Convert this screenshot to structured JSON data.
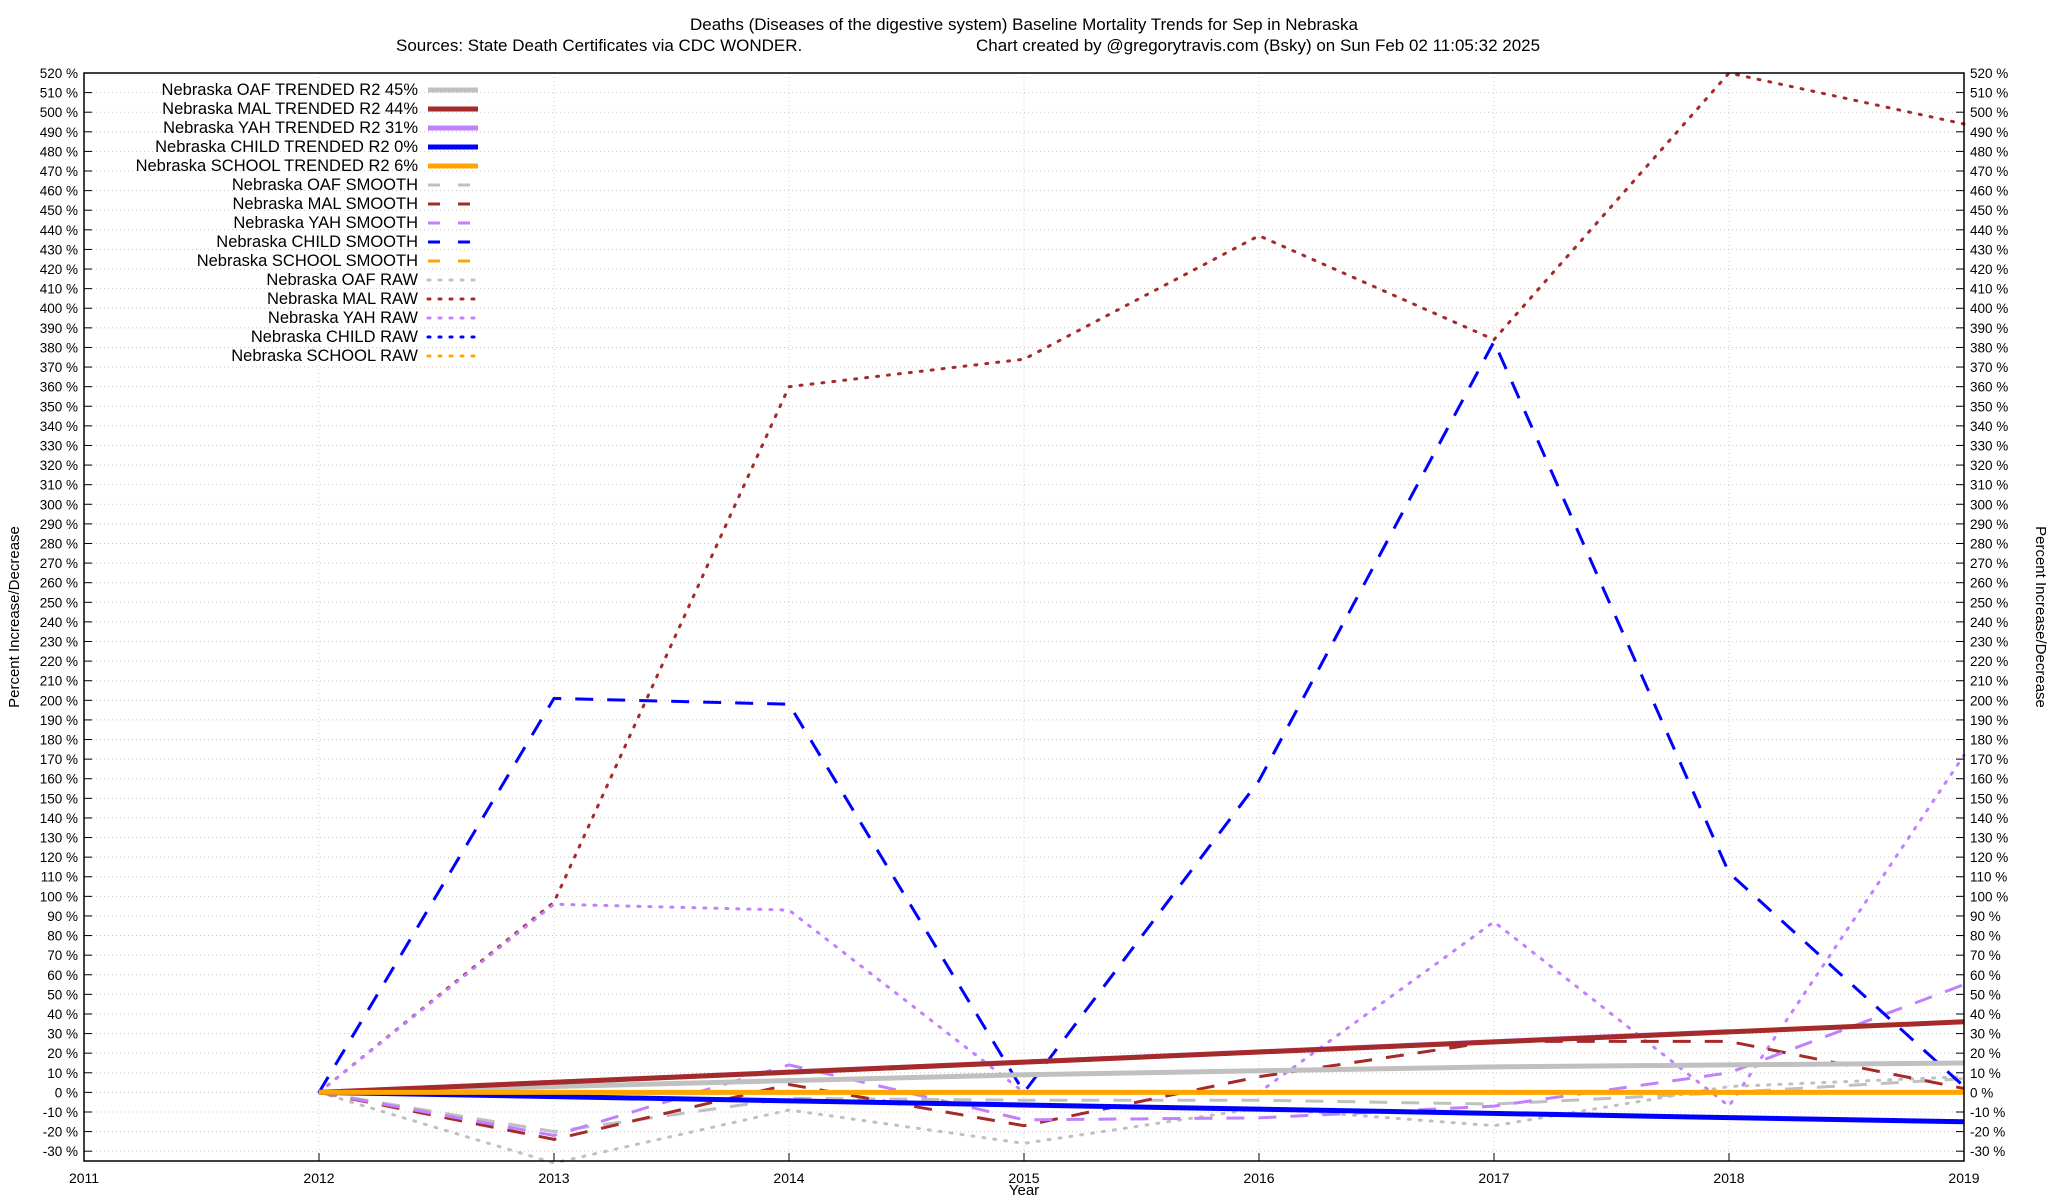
{
  "chart_data": {
    "type": "line",
    "title": "Deaths (Diseases of the digestive system)  Baseline Mortality Trends for Sep in Nebraska",
    "subtitle_left": "Sources: State Death Certificates via CDC WONDER.",
    "subtitle_right": "Chart created by @gregorytravis.com (Bsky) on Sun Feb 02 11:05:32 2025",
    "xlabel": "Year",
    "ylabel": "Percent Increase/Decrease",
    "ylabel_right": "Percent Increase/Decrease",
    "xlim": [
      2011,
      2019
    ],
    "ylim": [
      -35,
      520
    ],
    "x_ticks": [
      "2011",
      "2012",
      "2013",
      "2014",
      "2015",
      "2016",
      "2017",
      "2018",
      "2019"
    ],
    "y_tick_step": 10,
    "y_tick_min": -30,
    "y_tick_max": 520,
    "y_tick_suffix": " %",
    "grid": true,
    "legend_position": "top-left",
    "series": [
      {
        "name": "Nebraska OAF TRENDED R2  45%",
        "color": "#c0c0c0",
        "style": "solid",
        "width": 5,
        "x": [
          2012,
          2013,
          2014,
          2015,
          2016,
          2017,
          2018,
          2019
        ],
        "y": [
          0,
          3,
          6,
          9,
          11,
          13,
          14,
          15
        ]
      },
      {
        "name": "Nebraska MAL TRENDED R2  44%",
        "color": "#a52a2a",
        "style": "solid",
        "width": 5,
        "x": [
          2012,
          2019
        ],
        "y": [
          0,
          36
        ]
      },
      {
        "name": "Nebraska YAH TRENDED R2  31%",
        "color": "#c080ff",
        "style": "solid",
        "width": 5,
        "x": [
          2012,
          2018
        ],
        "y": [
          0,
          31
        ]
      },
      {
        "name": "Nebraska CHILD TRENDED R2   0%",
        "color": "#0000ff",
        "style": "solid",
        "width": 5,
        "x": [
          2012,
          2019
        ],
        "y": [
          0,
          -15
        ]
      },
      {
        "name": "Nebraska SCHOOL TRENDED R2   6%",
        "color": "#ffa500",
        "style": "solid",
        "width": 5,
        "x": [
          2012,
          2019
        ],
        "y": [
          0,
          0
        ]
      },
      {
        "name": "Nebraska OAF SMOOTH",
        "color": "#c0c0c0",
        "style": "dash",
        "width": 3,
        "x": [
          2012,
          2013,
          2014,
          2015,
          2016,
          2017,
          2018,
          2019
        ],
        "y": [
          0,
          -20,
          -3,
          -4,
          -4,
          -6,
          0,
          7
        ]
      },
      {
        "name": "Nebraska MAL SMOOTH",
        "color": "#a52a2a",
        "style": "dash",
        "width": 3,
        "x": [
          2012,
          2013,
          2014,
          2015,
          2016,
          2017,
          2018,
          2019
        ],
        "y": [
          0,
          -24,
          4,
          -17,
          8,
          26,
          26,
          2
        ]
      },
      {
        "name": "Nebraska YAH SMOOTH",
        "color": "#c080ff",
        "style": "dash",
        "width": 3,
        "x": [
          2012,
          2013,
          2014,
          2015,
          2016,
          2017,
          2018,
          2019
        ],
        "y": [
          0,
          -22,
          14,
          -14,
          -13,
          -7,
          10,
          55
        ]
      },
      {
        "name": "Nebraska CHILD SMOOTH",
        "color": "#0000ff",
        "style": "dash",
        "width": 3,
        "x": [
          2012,
          2013,
          2014,
          2015,
          2016,
          2017,
          2018,
          2019
        ],
        "y": [
          0,
          201,
          198,
          0,
          159,
          383,
          112,
          3
        ]
      },
      {
        "name": "Nebraska SCHOOL SMOOTH",
        "color": "#ffa500",
        "style": "dash",
        "width": 3,
        "x": [
          2012,
          2019
        ],
        "y": [
          0,
          0
        ]
      },
      {
        "name": "Nebraska OAF RAW",
        "color": "#c0c0c0",
        "style": "dot",
        "width": 3,
        "x": [
          2012,
          2013,
          2014,
          2015,
          2016,
          2017,
          2018,
          2019
        ],
        "y": [
          0,
          -36,
          -9,
          -26,
          -8,
          -17,
          3,
          8
        ]
      },
      {
        "name": "Nebraska MAL RAW",
        "color": "#a52a2a",
        "style": "dot",
        "width": 3,
        "x": [
          2012,
          2013,
          2014,
          2015,
          2016,
          2017,
          2018,
          2019
        ],
        "y": [
          0,
          97,
          360,
          374,
          437,
          384,
          520,
          494
        ]
      },
      {
        "name": "Nebraska YAH RAW",
        "color": "#c080ff",
        "style": "dot",
        "width": 3,
        "x": [
          2012,
          2013,
          2014,
          2015,
          2016,
          2017,
          2018,
          2019
        ],
        "y": [
          0,
          96,
          93,
          0,
          0,
          87,
          -7,
          172
        ]
      },
      {
        "name": "Nebraska CHILD RAW",
        "color": "#0000ff",
        "style": "dot",
        "width": 3,
        "x": [],
        "y": []
      },
      {
        "name": "Nebraska SCHOOL RAW",
        "color": "#ffa500",
        "style": "dot",
        "width": 3,
        "x": [],
        "y": []
      }
    ]
  }
}
